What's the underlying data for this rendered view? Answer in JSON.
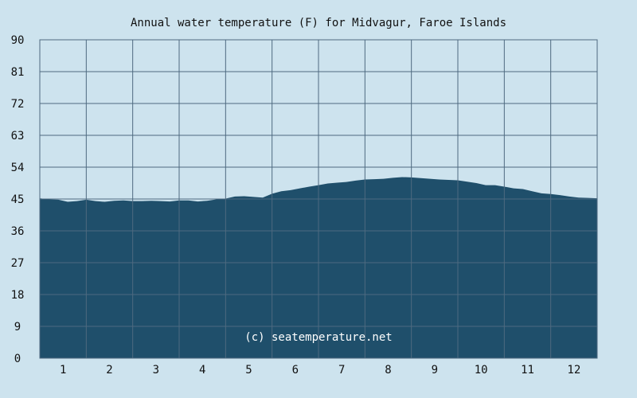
{
  "chart_data": {
    "type": "area",
    "title": "Annual water temperature (F) for Midvagur, Faroe Islands",
    "xlabel": "",
    "ylabel": "",
    "categories": [
      "1",
      "2",
      "3",
      "4",
      "5",
      "6",
      "7",
      "8",
      "9",
      "10",
      "11",
      "12"
    ],
    "y_ticks": [
      "0",
      "9",
      "18",
      "27",
      "36",
      "45",
      "54",
      "63",
      "72",
      "81",
      "90"
    ],
    "ylim": [
      0,
      90
    ],
    "xlim": [
      0.5,
      12.5
    ],
    "grid": true,
    "legend": "none",
    "series": [
      {
        "x": [
          0.5,
          0.7,
          0.9,
          1.1,
          1.3,
          1.5,
          1.7,
          1.9,
          2.1,
          2.3,
          2.5,
          2.7,
          2.9,
          3.1,
          3.3,
          3.5,
          3.7,
          3.9,
          4.1,
          4.3,
          4.5,
          4.7,
          4.9,
          5.1,
          5.3,
          5.5,
          5.7,
          5.9,
          6.1,
          6.3,
          6.5,
          6.7,
          6.9,
          7.1,
          7.3,
          7.5,
          7.7,
          7.9,
          8.1,
          8.3,
          8.5,
          8.7,
          8.9,
          9.1,
          9.3,
          9.5,
          9.7,
          9.9,
          10.1,
          10.3,
          10.5,
          10.7,
          10.9,
          11.1,
          11.3,
          11.5,
          11.7,
          11.9,
          12.1,
          12.3,
          12.5
        ],
        "values": [
          45.2,
          44.9,
          44.8,
          44.2,
          44.4,
          44.8,
          44.4,
          44.2,
          44.5,
          44.6,
          44.4,
          44.4,
          44.5,
          44.4,
          44.3,
          44.6,
          44.6,
          44.3,
          44.5,
          44.9,
          45.1,
          45.7,
          45.8,
          45.6,
          45.4,
          46.5,
          47.2,
          47.5,
          48.0,
          48.5,
          48.9,
          49.4,
          49.6,
          49.8,
          50.2,
          50.5,
          50.6,
          50.7,
          51.0,
          51.2,
          51.1,
          50.9,
          50.7,
          50.5,
          50.4,
          50.3,
          49.9,
          49.5,
          48.9,
          48.9,
          48.5,
          48.0,
          47.8,
          47.2,
          46.6,
          46.4,
          46.1,
          45.7,
          45.4,
          45.3,
          45.2
        ]
      }
    ],
    "colors": {
      "background": "#cde3ee",
      "area_fill": "#1f4f6b",
      "grid_line": "#4e6a80",
      "text": "#111111",
      "credit_text": "#ffffff"
    },
    "annotations": [
      {
        "text": "(c) seatemperature.net",
        "x": 6.5,
        "y": 5
      }
    ]
  }
}
